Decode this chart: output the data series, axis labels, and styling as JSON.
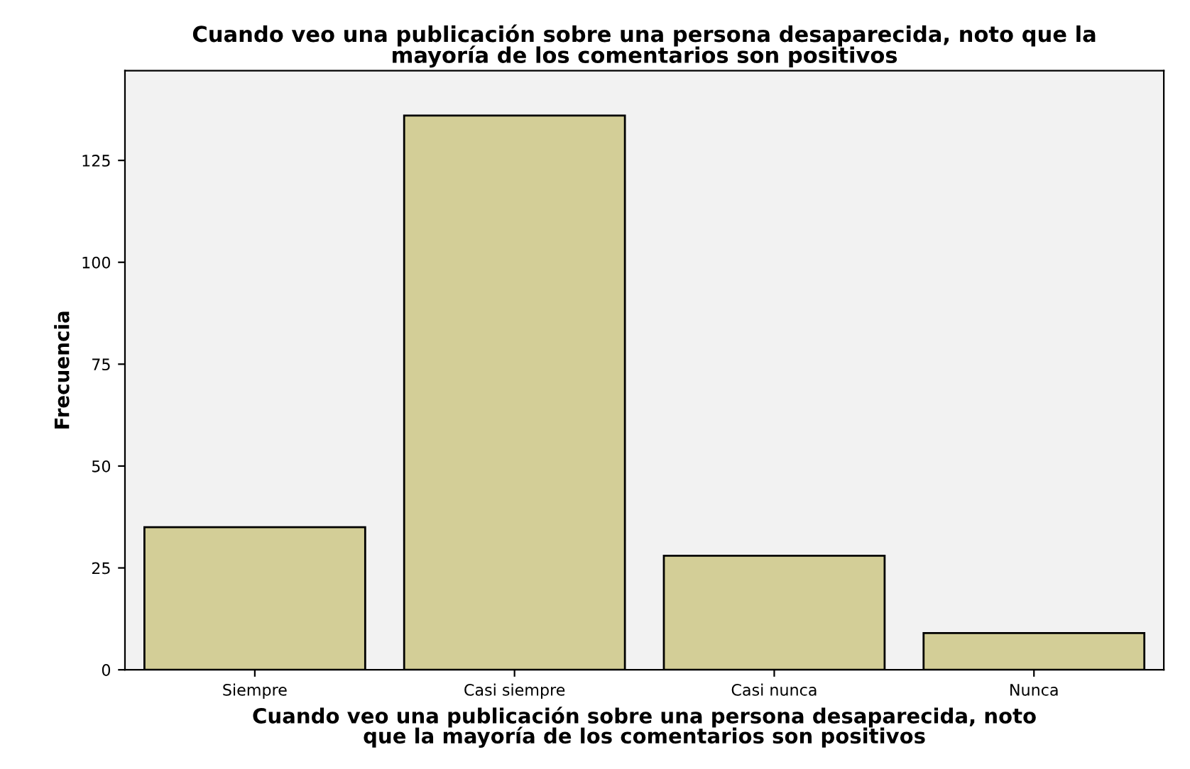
{
  "chart_data": {
    "type": "bar",
    "title": "Cuando veo una publicación sobre una persona desaparecida, noto que la\nmayoría de los comentarios son positivos",
    "xlabel": "Cuando veo una publicación sobre una persona desaparecida, noto\nque la mayoría de los comentarios son positivos",
    "ylabel": "Frecuencia",
    "categories": [
      "Siempre",
      "Casi siempre",
      "Casi nunca",
      "Nunca"
    ],
    "values": [
      35,
      136,
      28,
      9
    ],
    "color": "#d3ce97",
    "ylim": [
      0,
      147
    ],
    "yticks": [
      0,
      25,
      50,
      75,
      100,
      125
    ],
    "grid": false
  }
}
